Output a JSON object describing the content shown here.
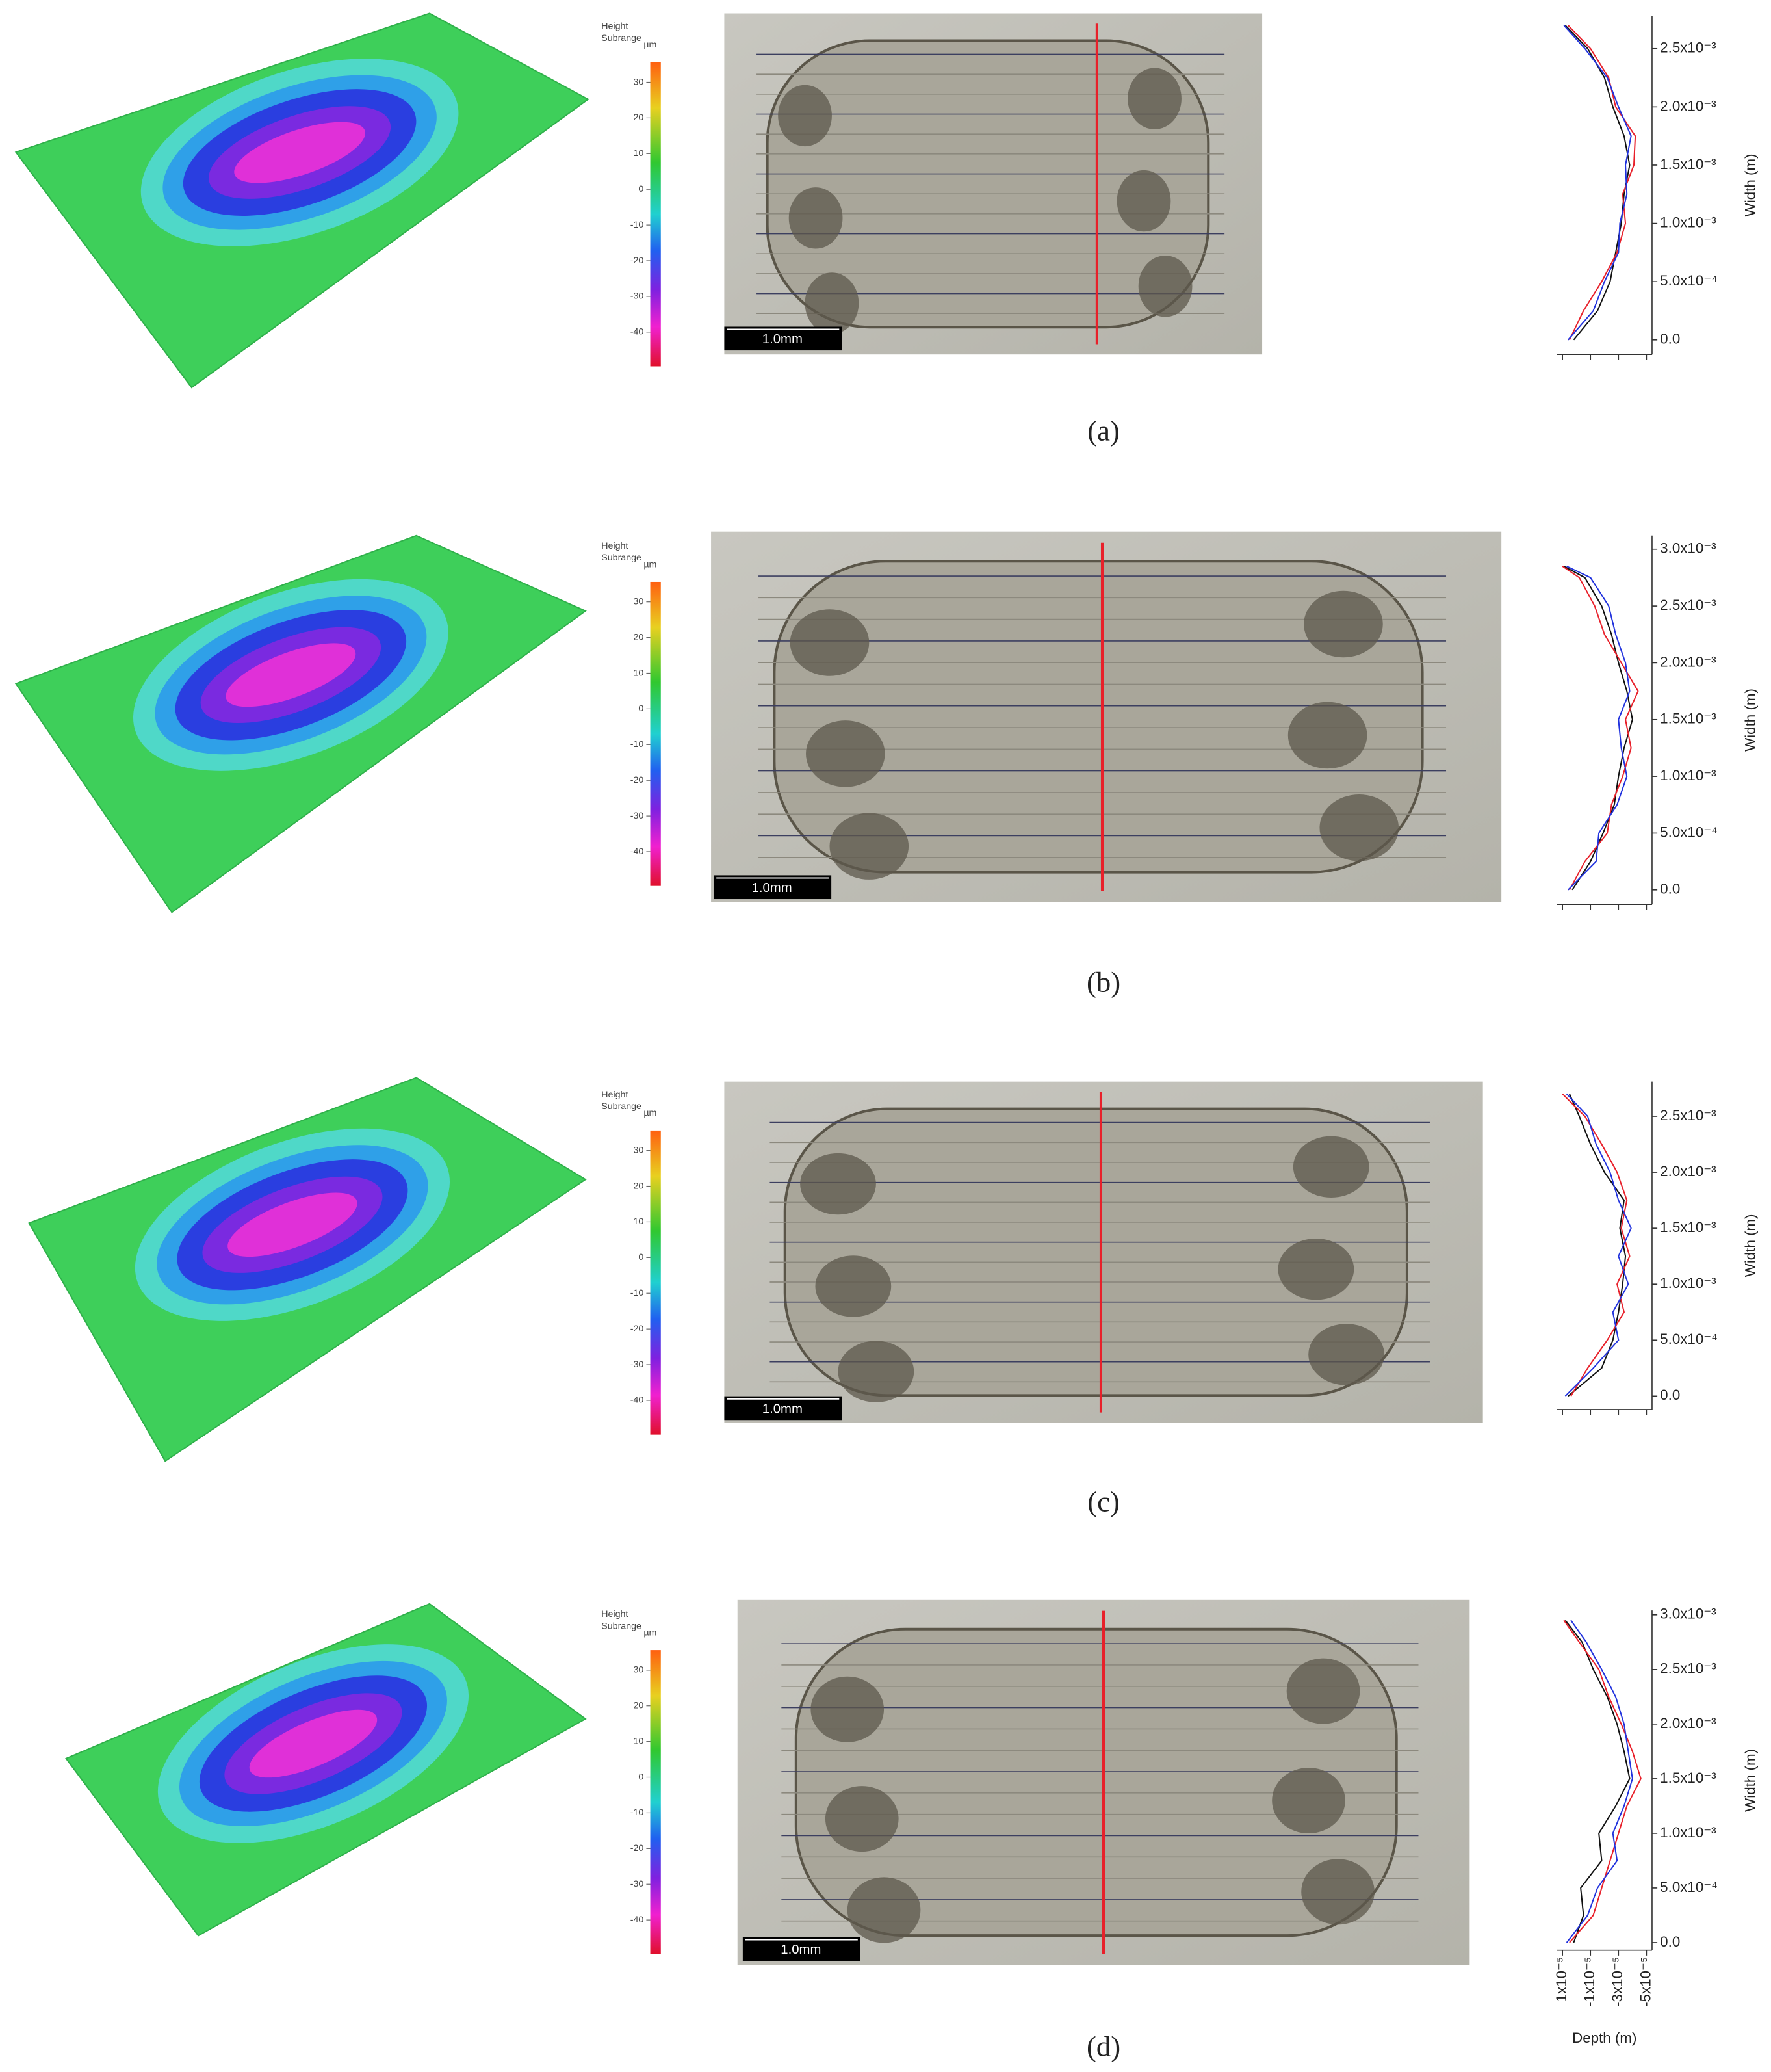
{
  "panel_labels": [
    "(a)",
    "(b)",
    "(c)",
    "(d)"
  ],
  "colorbar": {
    "title_lines": [
      "Height",
      "Subrange"
    ],
    "unit": "µm",
    "ticks": [
      30,
      20,
      10,
      0,
      -10,
      -20,
      -30,
      -40
    ],
    "lim": [
      35.6,
      -49.6
    ]
  },
  "scale_bar": "1.0mm",
  "chart_data": [
    {
      "type": "line",
      "ylabel": "Width (m)",
      "xlim": [
        1.4e-05,
        -5.4e-05
      ],
      "ylim": [
        -0.000125,
        0.00278
      ],
      "xtick_marks": [
        1e-05,
        -1e-05,
        -3e-05,
        -5e-05
      ],
      "yticks": [
        {
          "value": 0,
          "label": "0.0"
        },
        {
          "value": 0.0005,
          "label": "5.0x10⁻⁴"
        },
        {
          "value": 0.001,
          "label": "1.0x10⁻³"
        },
        {
          "value": 0.0015,
          "label": "1.5x10⁻³"
        },
        {
          "value": 0.002,
          "label": "2.0x10⁻³"
        },
        {
          "value": 0.0025,
          "label": "2.5x10⁻³"
        }
      ],
      "y": [
        0,
        0.00025,
        0.0005,
        0.00075,
        0.001,
        0.00125,
        0.0015,
        0.00175,
        0.002,
        0.00225,
        0.0025,
        0.0027
      ],
      "series": [
        {
          "color": "#111111",
          "values": [
            2e-06,
            -1.5e-05,
            -2.4e-05,
            -2.8e-05,
            -3.2e-05,
            -3.4e-05,
            -3.8e-05,
            -3.4e-05,
            -2.6e-05,
            -2e-05,
            -8e-06,
            8e-06
          ]
        },
        {
          "color": "#e8202a",
          "values": [
            5e-06,
            -5e-06,
            -1.8e-05,
            -2.9e-05,
            -3.5e-05,
            -3.3e-05,
            -4.1e-05,
            -4.2e-05,
            -2.8e-05,
            -2.3e-05,
            -1e-05,
            6e-06
          ]
        },
        {
          "color": "#2233dd",
          "values": [
            6e-06,
            -1.2e-05,
            -2e-05,
            -3e-05,
            -3.1e-05,
            -3.6e-05,
            -3.5e-05,
            -3.9e-05,
            -3e-05,
            -2.2e-05,
            -6e-06,
            9e-06
          ]
        }
      ]
    },
    {
      "type": "line",
      "ylabel": "Width (m)",
      "xlim": [
        1.4e-05,
        -5.4e-05
      ],
      "ylim": [
        -0.000128,
        0.00312
      ],
      "xtick_marks": [
        1e-05,
        -1e-05,
        -3e-05,
        -5e-05
      ],
      "yticks": [
        {
          "value": 0,
          "label": "0.0"
        },
        {
          "value": 0.0005,
          "label": "5.0x10⁻⁴"
        },
        {
          "value": 0.001,
          "label": "1.0x10⁻³"
        },
        {
          "value": 0.0015,
          "label": "1.5x10⁻³"
        },
        {
          "value": 0.002,
          "label": "2.0x10⁻³"
        },
        {
          "value": 0.0025,
          "label": "2.5x10⁻³"
        },
        {
          "value": 0.003,
          "label": "3.0x10⁻³"
        }
      ],
      "y": [
        0,
        0.00025,
        0.0005,
        0.00075,
        0.001,
        0.00125,
        0.0015,
        0.00175,
        0.002,
        0.00225,
        0.0025,
        0.00275,
        0.00285
      ],
      "series": [
        {
          "color": "#111111",
          "values": [
            3e-06,
            -1e-05,
            -1.9e-05,
            -2.7e-05,
            -3e-05,
            -3.4e-05,
            -4e-05,
            -3.6e-05,
            -3e-05,
            -2.5e-05,
            -1.8e-05,
            -6e-06,
            9e-06
          ]
        },
        {
          "color": "#e8202a",
          "values": [
            5e-06,
            -6e-06,
            -2.2e-05,
            -2.5e-05,
            -3.3e-05,
            -3.9e-05,
            -3.5e-05,
            -4.4e-05,
            -3.2e-05,
            -2e-05,
            -1.3e-05,
            -2e-06,
            1e-05
          ]
        },
        {
          "color": "#2233dd",
          "values": [
            6e-06,
            -1.4e-05,
            -1.6e-05,
            -2.9e-05,
            -3.6e-05,
            -3.2e-05,
            -3e-05,
            -3.8e-05,
            -3.5e-05,
            -2.8e-05,
            -2.3e-05,
            -1e-05,
            7e-06
          ]
        }
      ]
    },
    {
      "type": "line",
      "ylabel": "Width (m)",
      "xlim": [
        1.4e-05,
        -5.4e-05
      ],
      "ylim": [
        -0.00012,
        0.00281
      ],
      "xtick_marks": [
        1e-05,
        -1e-05,
        -3e-05,
        -5e-05
      ],
      "yticks": [
        {
          "value": 0,
          "label": "0.0"
        },
        {
          "value": 0.0005,
          "label": "5.0x10⁻⁴"
        },
        {
          "value": 0.001,
          "label": "1.0x10⁻³"
        },
        {
          "value": 0.0015,
          "label": "1.5x10⁻³"
        },
        {
          "value": 0.002,
          "label": "2.0x10⁻³"
        },
        {
          "value": 0.0025,
          "label": "2.5x10⁻³"
        }
      ],
      "y": [
        0,
        0.00025,
        0.0005,
        0.00075,
        0.001,
        0.00125,
        0.0015,
        0.00175,
        0.002,
        0.00225,
        0.0025,
        0.0027
      ],
      "series": [
        {
          "color": "#111111",
          "values": [
            6e-06,
            -1.8e-05,
            -2.6e-05,
            -3e-05,
            -3.3e-05,
            -3.5e-05,
            -3.1e-05,
            -3.4e-05,
            -2e-05,
            -1e-05,
            -2e-06,
            5e-06
          ]
        },
        {
          "color": "#e8202a",
          "values": [
            4e-06,
            -8e-06,
            -2.2e-05,
            -3.4e-05,
            -2.9e-05,
            -3.8e-05,
            -3.2e-05,
            -3.6e-05,
            -2.9e-05,
            -1.8e-05,
            -6e-06,
            1e-05
          ]
        },
        {
          "color": "#2233dd",
          "values": [
            8e-06,
            -1.2e-05,
            -3e-05,
            -2.6e-05,
            -3.7e-05,
            -3e-05,
            -3.9e-05,
            -3e-05,
            -2.4e-05,
            -1.4e-05,
            -8e-06,
            7e-06
          ]
        }
      ]
    },
    {
      "type": "line",
      "ylabel": "Width (m)",
      "xlabel": "Depth (m)",
      "xlim": [
        1.4e-05,
        -5.4e-05
      ],
      "ylim": [
        -7e-05,
        0.00304
      ],
      "xticks": [
        {
          "value": 1e-05,
          "label": "1x10⁻⁵"
        },
        {
          "value": -1e-05,
          "label": "-1x10⁻⁵"
        },
        {
          "value": -3e-05,
          "label": "-3x10⁻⁵"
        },
        {
          "value": -5e-05,
          "label": "-5x10⁻⁵"
        }
      ],
      "yticks": [
        {
          "value": 0,
          "label": "0.0"
        },
        {
          "value": 0.0005,
          "label": "5.0x10⁻⁴"
        },
        {
          "value": 0.001,
          "label": "1.0x10⁻³"
        },
        {
          "value": 0.0015,
          "label": "1.5x10⁻³"
        },
        {
          "value": 0.002,
          "label": "2.0x10⁻³"
        },
        {
          "value": 0.0025,
          "label": "2.5x10⁻³"
        },
        {
          "value": 0.003,
          "label": "3.0x10⁻³"
        }
      ],
      "y": [
        0,
        0.00025,
        0.0005,
        0.00075,
        0.001,
        0.00125,
        0.0015,
        0.00175,
        0.002,
        0.00225,
        0.0025,
        0.00275,
        0.00295
      ],
      "series": [
        {
          "color": "#111111",
          "values": [
            2e-06,
            -5e-06,
            -3e-06,
            -1.8e-05,
            -1.6e-05,
            -2.8e-05,
            -3.8e-05,
            -3.4e-05,
            -2.9e-05,
            -2.2e-05,
            -1.2e-05,
            -4e-06,
            8e-06
          ]
        },
        {
          "color": "#e8202a",
          "values": [
            5e-06,
            -1.2e-05,
            -1.8e-05,
            -2.4e-05,
            -3e-05,
            -3.6e-05,
            -4.6e-05,
            -4e-05,
            -3.2e-05,
            -2.3e-05,
            -1.6e-05,
            -2e-06,
            9e-06
          ]
        },
        {
          "color": "#2233dd",
          "values": [
            7e-06,
            -8e-06,
            -1.5e-05,
            -2.9e-05,
            -2.6e-05,
            -3.4e-05,
            -4e-05,
            -3.7e-05,
            -3.4e-05,
            -2.8e-05,
            -1.8e-05,
            -7e-06,
            4e-06
          ]
        }
      ]
    }
  ]
}
